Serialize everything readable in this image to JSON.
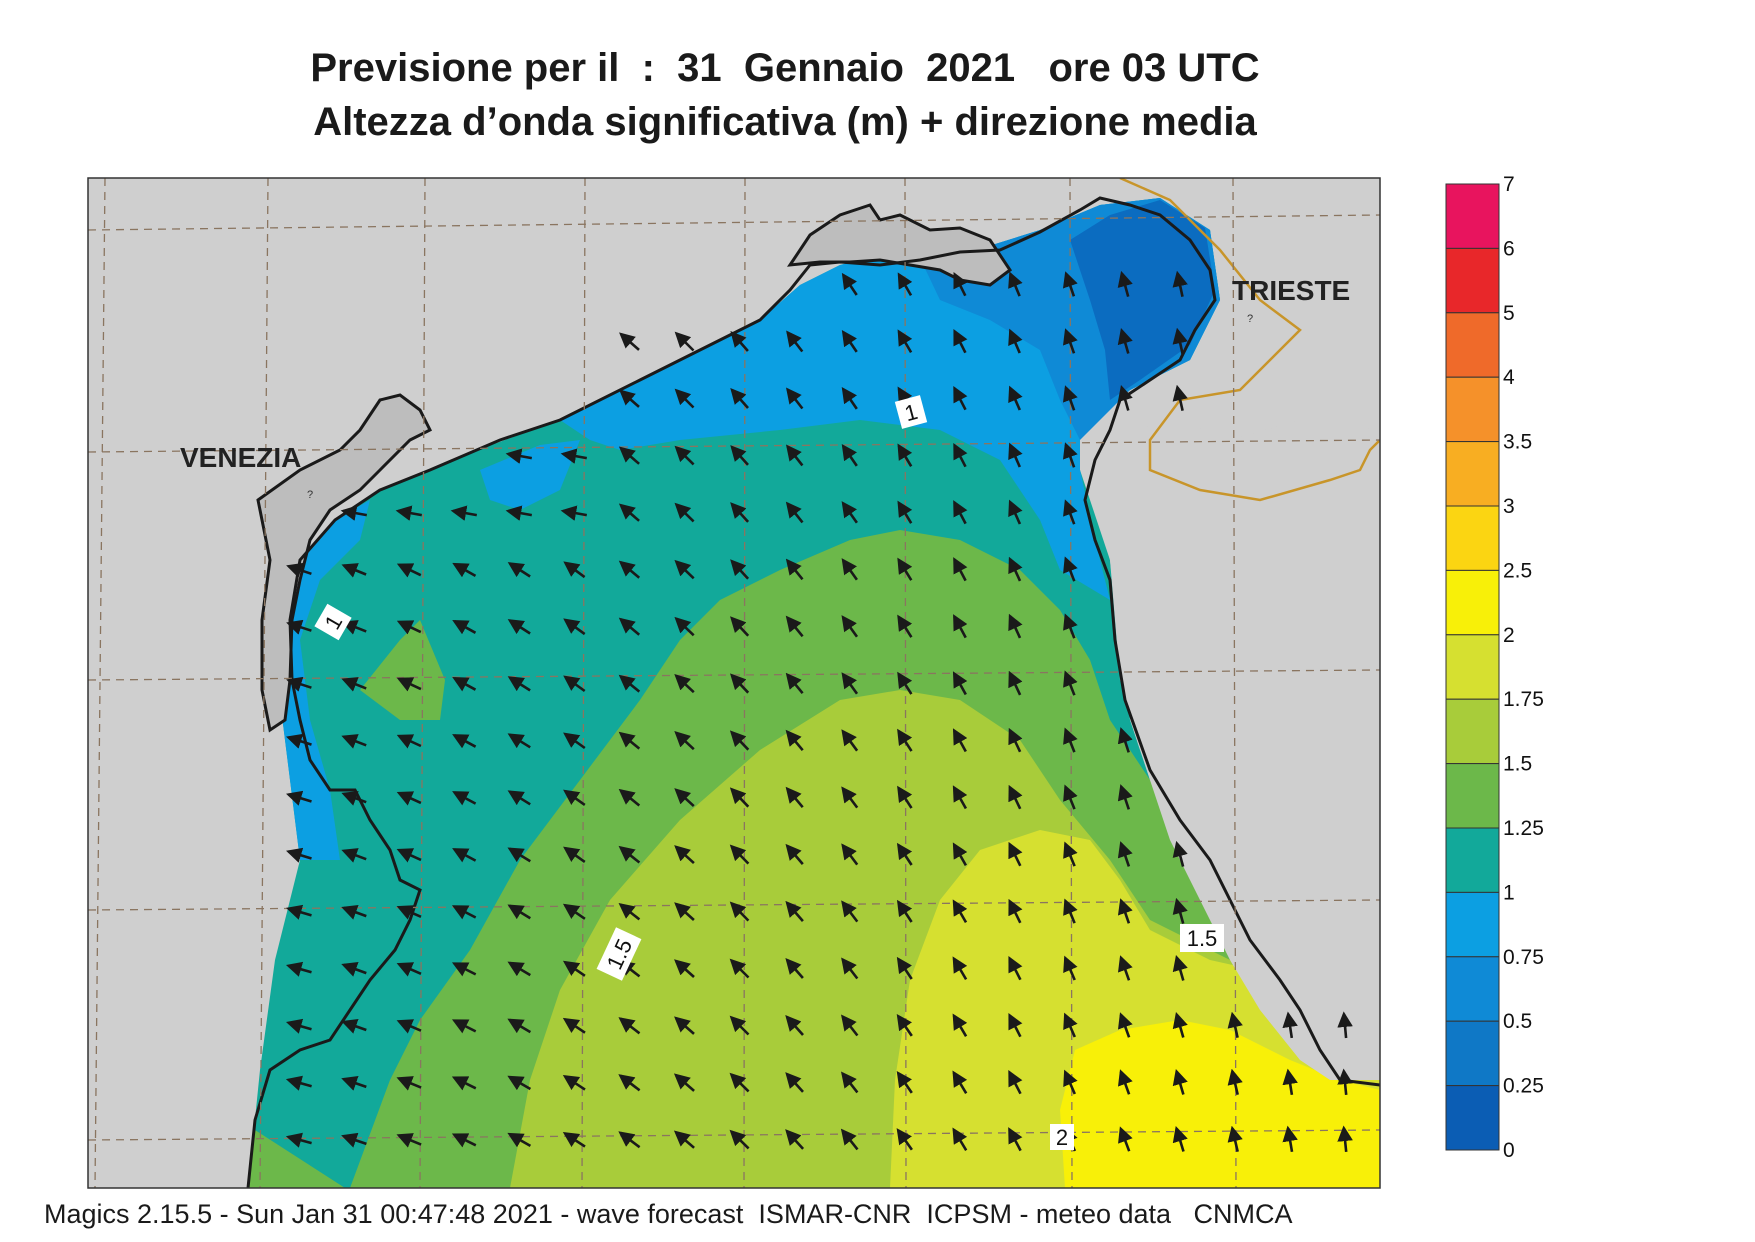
{
  "title": {
    "line1": "Previsione per il  :  31  Gennaio  2021   ore 03 UTC",
    "line2": "Altezza d’onda significativa (m) + direzione media"
  },
  "map": {
    "cities": [
      "VENEZIA",
      "TRIESTE"
    ],
    "contour_labels": [
      "1",
      "1",
      "1.5",
      "1.5",
      "2"
    ]
  },
  "legend": {
    "ticks": [
      "7",
      "6",
      "5",
      "4",
      "3.5",
      "3",
      "2.5",
      "2",
      "1.75",
      "1.5",
      "1.25",
      "1",
      "0.75",
      "0.5",
      "0.25",
      "0"
    ],
    "colors": [
      "#e8145e",
      "#e8272a",
      "#ef6a2a",
      "#f5912a",
      "#f8ae22",
      "#fbd512",
      "#f8f008",
      "#d6e030",
      "#a8cc3a",
      "#6cb84a",
      "#12a99a",
      "#0c9fe2",
      "#0f8ad6",
      "#0f78c6",
      "#0b5db4"
    ]
  },
  "footer": "Magics 2.15.5 - Sun Jan 31 00:47:48 2021 - wave forecast  ISMAR-CNR  ICPSM - meteo data   CNMCA"
}
